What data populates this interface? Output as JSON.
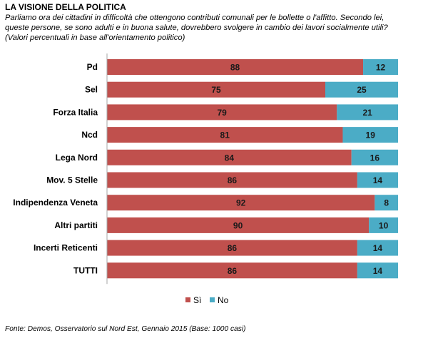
{
  "header": {
    "title": "LA VISIONE DELLA POLITICA",
    "subtitle_lines": [
      "Parliamo ora dei cittadini in difficoltà che ottengono contributi comunali per le bollette o l'affitto.  Secondo lei,",
      "queste persone, se sono adulti e in buona salute, dovrebbero svolgere in cambio dei lavori socialmente utili?",
      "(Valori percentuali in base all'orientamento politico)"
    ]
  },
  "chart_data": {
    "type": "bar",
    "orientation": "horizontal",
    "stacked": true,
    "categories": [
      "Pd",
      "Sel",
      "Forza Italia",
      "Ncd",
      "Lega Nord",
      "Mov. 5 Stelle",
      "Indipendenza Veneta",
      "Altri partiti",
      "Incerti Reticenti",
      "TUTTI"
    ],
    "series": [
      {
        "name": "Sì",
        "color": "#C0504D",
        "values": [
          88,
          75,
          79,
          81,
          84,
          86,
          92,
          90,
          86,
          86
        ]
      },
      {
        "name": "No",
        "color": "#4BACC6",
        "values": [
          12,
          25,
          21,
          19,
          16,
          14,
          8,
          10,
          14,
          14
        ]
      }
    ],
    "xlim": [
      0,
      100
    ],
    "grid": false,
    "legend": "bottom"
  },
  "footer": {
    "source": "Fonte: Demos, Osservatorio sul Nord Est, Gennaio 2015 (Base: 1000 casi)"
  }
}
